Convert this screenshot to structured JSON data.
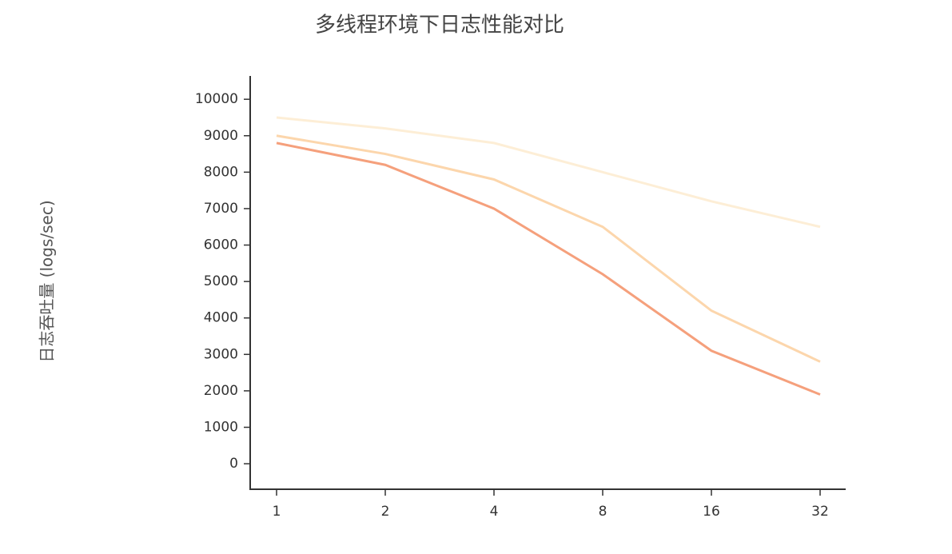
{
  "chart_data": {
    "type": "line",
    "title": "多线程环境下日志性能对比",
    "y_label": "日志吞吐量 (logs/sec)",
    "categories": [
      "1",
      "2",
      "4",
      "8",
      "16",
      "32"
    ],
    "series": [
      {
        "color": "#fdeed6",
        "values": [
          9500,
          9200,
          8800,
          8000,
          7200,
          6500
        ]
      },
      {
        "color": "#fcd6ac",
        "values": [
          9000,
          8500,
          7800,
          6500,
          4200,
          2800
        ]
      },
      {
        "color": "#f5a07c",
        "values": [
          8800,
          8200,
          7000,
          5200,
          3100,
          1900
        ]
      }
    ],
    "ylim": [
      -700,
      10640
    ],
    "yticks": [
      0,
      1000,
      2000,
      3000,
      4000,
      5000,
      6000,
      7000,
      8000,
      9000,
      10000
    ],
    "grid": false
  }
}
